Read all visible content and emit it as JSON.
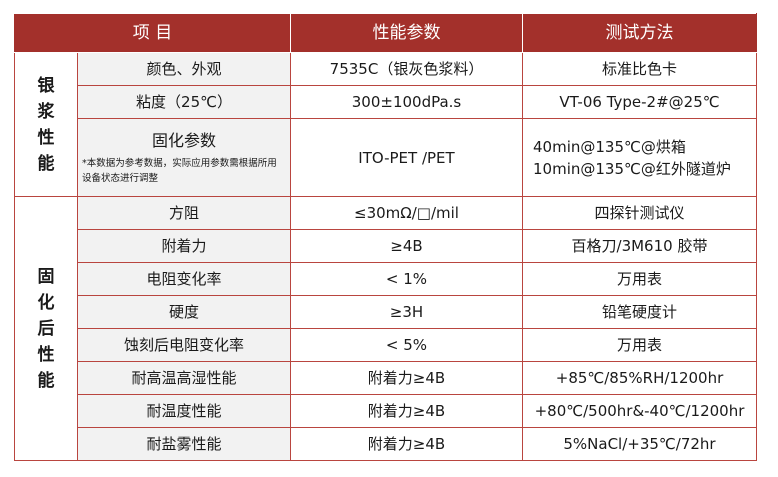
{
  "header": {
    "item": "项 目",
    "param": "性能参数",
    "method": "测试方法"
  },
  "group_paste": "银浆性能",
  "group_cured": "固化后性能",
  "paste_rows": [
    {
      "item": "颜色、外观",
      "param": "7535C（银灰色浆料）",
      "method": "标准比色卡"
    },
    {
      "item": "粘度（25℃）",
      "param": "300±100dPa.s",
      "method": "VT-06 Type-2#@25℃"
    }
  ],
  "cure_row": {
    "item": "固化参数",
    "note": "*本数据为参考数据，实际应用参数需根据所用设备状态进行调整",
    "param": "ITO-PET /PET",
    "method_line1": "40min@135℃@烘箱",
    "method_line2": "10min@135℃@红外隧道炉"
  },
  "cured_rows": [
    {
      "item": "方阻",
      "param": "≤30mΩ/□/mil",
      "method": "四探针测试仪"
    },
    {
      "item": "附着力",
      "param": "≥4B",
      "method": "百格刀/3M610 胶带"
    },
    {
      "item": "电阻变化率",
      "param": "< 1%",
      "method": "万用表"
    },
    {
      "item": "硬度",
      "param": "≥3H",
      "method": "铅笔硬度计"
    },
    {
      "item": "蚀刻后电阻变化率",
      "param": "< 5%",
      "method": "万用表"
    },
    {
      "item": "耐高温高湿性能",
      "param": "附着力≥4B",
      "method": "+85℃/85%RH/1200hr"
    },
    {
      "item": "耐温度性能",
      "param": "附着力≥4B",
      "method": "+80℃/500hr&-40℃/1200hr"
    },
    {
      "item": "耐盐雾性能",
      "param": "附着力≥4B",
      "method": "5%NaCl/+35℃/72hr"
    }
  ]
}
